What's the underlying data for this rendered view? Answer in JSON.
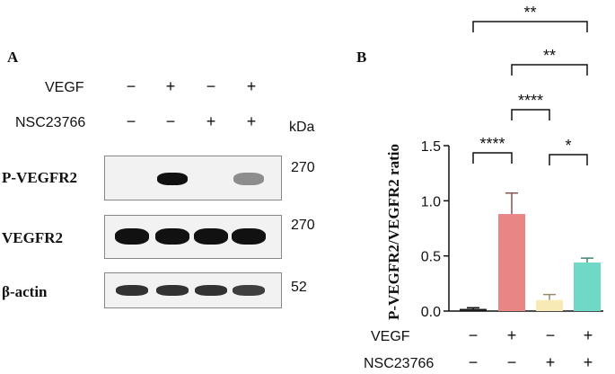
{
  "panel_a": {
    "letter": "A",
    "conditions": [
      {
        "label": "VEGF",
        "signs": [
          "−",
          "+",
          "−",
          "+"
        ]
      },
      {
        "label": "NSC23766",
        "signs": [
          "−",
          "−",
          "+",
          "+"
        ]
      }
    ],
    "kda_header": "kDa",
    "blots": [
      {
        "label": "P-VEGFR2",
        "kda": "270",
        "intensity": [
          0.0,
          1.0,
          0.0,
          0.45
        ]
      },
      {
        "label": "VEGFR2",
        "kda": "270",
        "intensity": [
          1.0,
          1.0,
          1.0,
          1.0
        ]
      },
      {
        "label": "β-actin",
        "kda": "52",
        "intensity": [
          0.85,
          0.85,
          0.85,
          0.8
        ]
      }
    ]
  },
  "panel_b": {
    "letter": "B",
    "row_labels": [
      "VEGF",
      "NSC23766"
    ],
    "signs": [
      [
        "−",
        "+",
        "−",
        "+"
      ],
      [
        "−",
        "−",
        "+",
        "+"
      ]
    ]
  },
  "chart_data": {
    "type": "bar",
    "categories": [
      "VEGF−/NSC23766−",
      "VEGF+/NSC23766−",
      "VEGF−/NSC23766+",
      "VEGF+/NSC23766+"
    ],
    "values": [
      0.02,
      0.88,
      0.1,
      0.44
    ],
    "errors": [
      0.01,
      0.19,
      0.05,
      0.04
    ],
    "colors": [
      "#1a1a1a",
      "#e88585",
      "#f7eab5",
      "#6fd8c7"
    ],
    "ylabel": "P-VEGFR2/VEGFR2 ratio",
    "ylim": [
      0,
      1.5
    ],
    "yticks": [
      "0.0",
      "0.5",
      "1.0",
      "1.5"
    ],
    "significance": [
      {
        "from": 0,
        "to": 3,
        "label": "**"
      },
      {
        "from": 1,
        "to": 3,
        "label": "**"
      },
      {
        "from": 1,
        "to": 2,
        "label": "****"
      },
      {
        "from": 0,
        "to": 1,
        "label": "****"
      },
      {
        "from": 2,
        "to": 3,
        "label": "*"
      }
    ]
  }
}
